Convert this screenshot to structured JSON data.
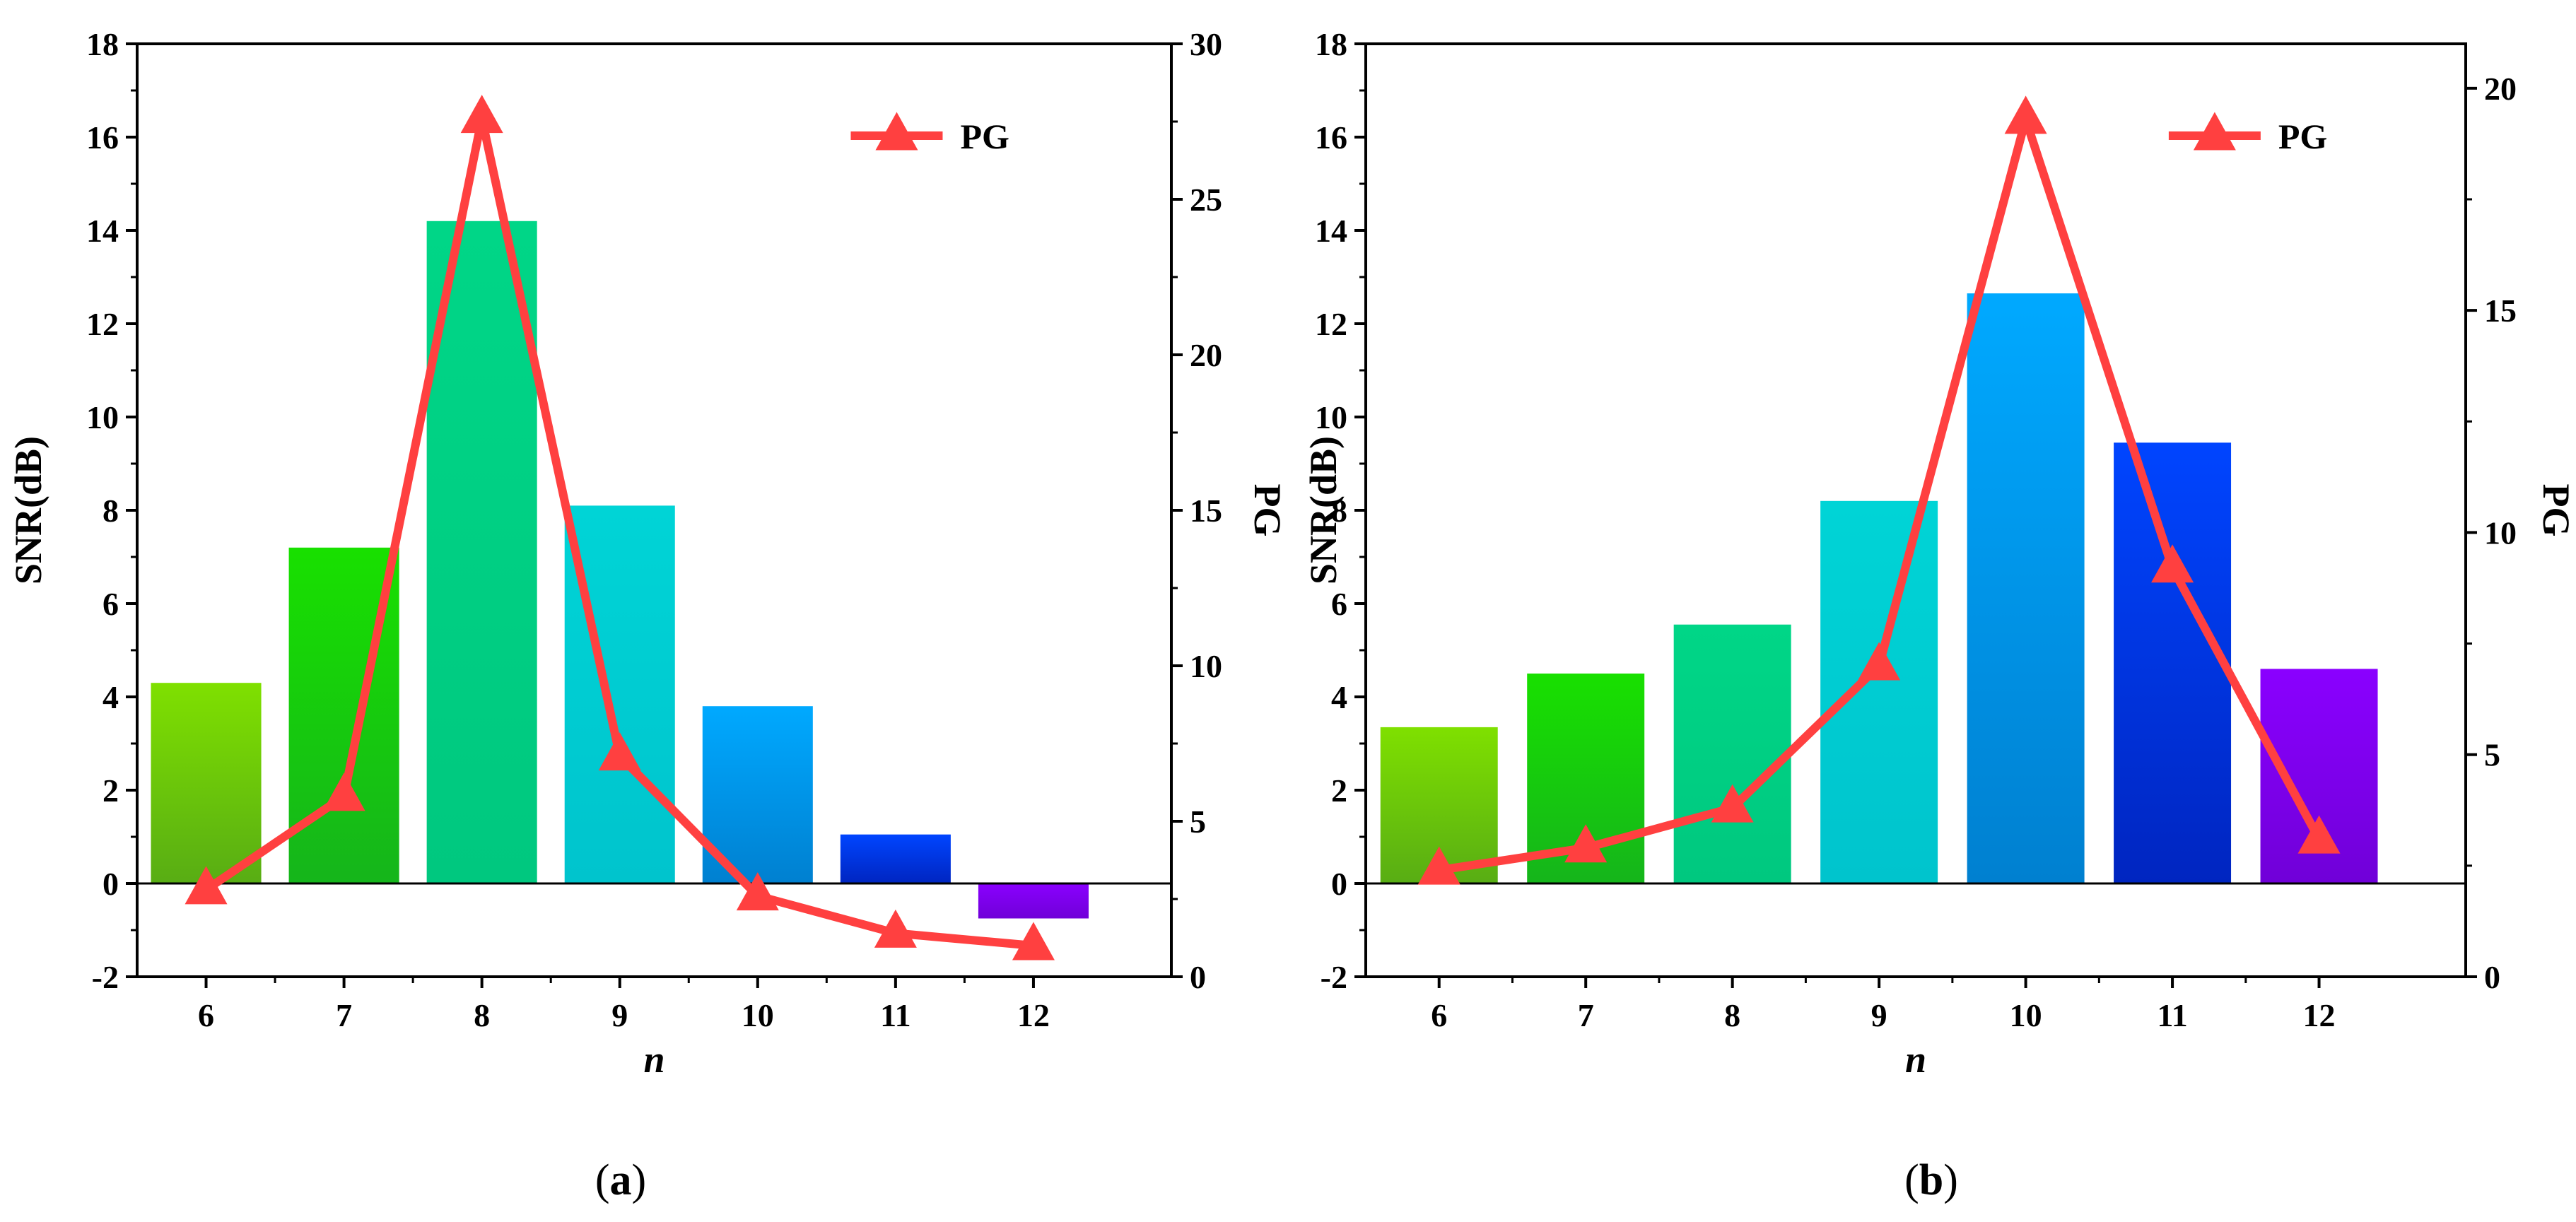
{
  "chart_data": [
    {
      "type": "bar",
      "panel": "(a)",
      "caption_letter": "a",
      "xlabel": "n",
      "ylabel": "SNR(dB)",
      "y2label": "PG",
      "categories": [
        "6",
        "7",
        "8",
        "9",
        "10",
        "11",
        "12"
      ],
      "ylim": [
        -2,
        18
      ],
      "yticks": [
        -2,
        0,
        2,
        4,
        6,
        8,
        10,
        12,
        14,
        16,
        18
      ],
      "y2lim": [
        0,
        30
      ],
      "y2ticks": [
        0,
        5,
        10,
        15,
        20,
        25,
        30
      ],
      "series": [
        {
          "name": "SNR",
          "type": "bar",
          "axis": "left",
          "values": [
            4.3,
            7.2,
            14.2,
            8.1,
            3.8,
            1.05,
            -0.75
          ],
          "colors": [
            [
              "#7fe000",
              "#58ad14"
            ],
            [
              "#18e000",
              "#15b51b"
            ],
            [
              "#00d687",
              "#00c87f"
            ],
            [
              "#00d4d6",
              "#00c4cd"
            ],
            [
              "#00a9ff",
              "#0080d0"
            ],
            [
              "#0045ff",
              "#0025c0"
            ],
            [
              "#8a00ff",
              "#7000d8"
            ]
          ]
        },
        {
          "name": "PG",
          "type": "line",
          "axis": "right",
          "marker": "triangle",
          "color": "#ff4040",
          "values": [
            2.8,
            5.8,
            27.6,
            7.1,
            2.6,
            1.4,
            1.0
          ]
        }
      ],
      "legend": {
        "label": "PG",
        "placement": "top-right"
      }
    },
    {
      "type": "bar",
      "panel": "(b)",
      "caption_letter": "b",
      "xlabel": "n",
      "ylabel": "SNR(dB)",
      "y2label": "PG",
      "categories": [
        "6",
        "7",
        "8",
        "9",
        "10",
        "11",
        "12"
      ],
      "ylim": [
        -2,
        18
      ],
      "yticks": [
        -2,
        0,
        2,
        4,
        6,
        8,
        10,
        12,
        14,
        16,
        18
      ],
      "y2lim": [
        0,
        21
      ],
      "y2ticks": [
        0,
        5,
        10,
        15,
        20
      ],
      "series": [
        {
          "name": "SNR",
          "type": "bar",
          "axis": "left",
          "values": [
            3.35,
            4.5,
            5.55,
            8.2,
            12.65,
            9.45,
            4.6
          ],
          "colors": [
            [
              "#7fe000",
              "#58ad14"
            ],
            [
              "#18e000",
              "#15b51b"
            ],
            [
              "#00d687",
              "#00c87f"
            ],
            [
              "#00d4d6",
              "#00c4cd"
            ],
            [
              "#00a9ff",
              "#0080d0"
            ],
            [
              "#0045ff",
              "#0025c0"
            ],
            [
              "#8a00ff",
              "#7000d8"
            ]
          ]
        },
        {
          "name": "PG",
          "type": "line",
          "axis": "right",
          "marker": "triangle",
          "color": "#ff4040",
          "values": [
            2.4,
            2.9,
            3.8,
            7.0,
            19.3,
            9.2,
            3.1
          ]
        }
      ],
      "legend": {
        "label": "PG",
        "placement": "top-right"
      }
    }
  ]
}
